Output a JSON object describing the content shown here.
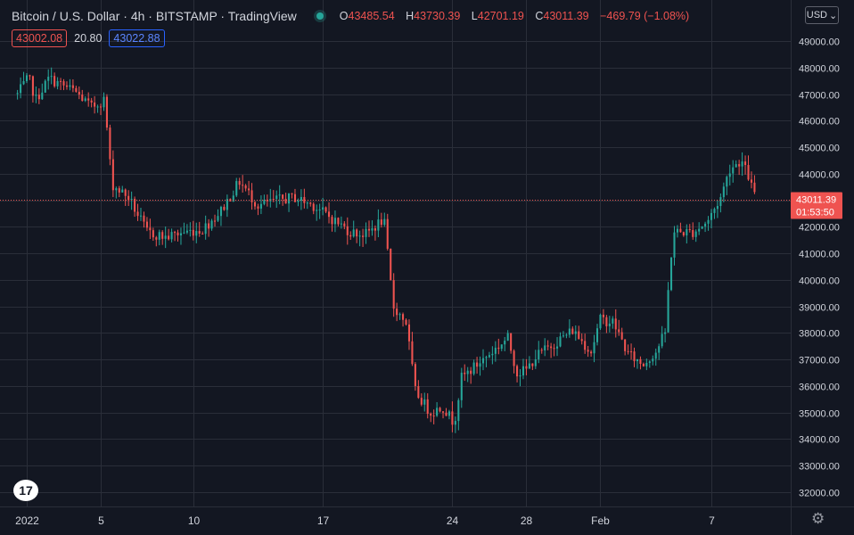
{
  "header": {
    "symbol_title": "Bitcoin / U.S. Dollar · 4h · BITSTAMP · TradingView",
    "ohlc": {
      "o_label": "O",
      "o_value": "43485.54",
      "h_label": "H",
      "h_value": "43730.39",
      "l_label": "L",
      "l_value": "42701.19",
      "c_label": "C",
      "c_value": "43011.39",
      "change": "−469.79 (−1.08%)"
    },
    "bid": "43002.08",
    "spread": "20.80",
    "ask": "43022.88",
    "currency": "USD"
  },
  "price_tag": {
    "price": "43011.39",
    "countdown": "01:53:50"
  },
  "colors": {
    "background": "#131722",
    "grid": "#2a2e39",
    "up": "#26a69a",
    "down": "#ef5350",
    "text": "#d1d4dc"
  },
  "icons": {
    "logo": "tradingview-logo-icon",
    "settings": "gear-icon",
    "currency_dropdown": "chevron-down-icon"
  },
  "chart_data": {
    "type": "candlestick",
    "interval": "4h",
    "last_price": 43011.39,
    "ylim": [
      31700,
      49700
    ],
    "y_ticks": [
      32000,
      33000,
      34000,
      35000,
      36000,
      37000,
      38000,
      39000,
      40000,
      41000,
      42000,
      43000,
      44000,
      45000,
      46000,
      47000,
      48000,
      49000
    ],
    "y_tick_labels": [
      "32000.00",
      "33000.00",
      "34000.00",
      "35000.00",
      "36000.00",
      "37000.00",
      "38000.00",
      "39000.00",
      "40000.00",
      "41000.00",
      "42000.00",
      "43000.00",
      "44000.00",
      "45000.00",
      "46000.00",
      "47000.00",
      "48000.00",
      "49000.00"
    ],
    "x_ticks": [
      {
        "label": "2022",
        "day": 1
      },
      {
        "label": "5",
        "day": 5
      },
      {
        "label": "10",
        "day": 10
      },
      {
        "label": "17",
        "day": 17
      },
      {
        "label": "24",
        "day": 24
      },
      {
        "label": "28",
        "day": 28
      },
      {
        "label": "Feb",
        "day": 32
      },
      {
        "label": "7",
        "day": 38
      }
    ],
    "first_day": 0.5,
    "candles_per_day": 6,
    "trend": [
      {
        "day": 0.5,
        "price": 47000
      },
      {
        "day": 1.1,
        "price": 47600
      },
      {
        "day": 1.5,
        "price": 46800
      },
      {
        "day": 2.2,
        "price": 47600
      },
      {
        "day": 3.0,
        "price": 47300
      },
      {
        "day": 3.6,
        "price": 47100
      },
      {
        "day": 4.5,
        "price": 46500
      },
      {
        "day": 5.2,
        "price": 46800
      },
      {
        "day": 5.6,
        "price": 43600
      },
      {
        "day": 6.5,
        "price": 43100
      },
      {
        "day": 7.5,
        "price": 41800
      },
      {
        "day": 8.5,
        "price": 41600
      },
      {
        "day": 9.5,
        "price": 41800
      },
      {
        "day": 10.5,
        "price": 41900
      },
      {
        "day": 11.5,
        "price": 42600
      },
      {
        "day": 12.5,
        "price": 43700
      },
      {
        "day": 13.5,
        "price": 42800
      },
      {
        "day": 14.5,
        "price": 43000
      },
      {
        "day": 15.5,
        "price": 43100
      },
      {
        "day": 16.5,
        "price": 42800
      },
      {
        "day": 17.5,
        "price": 42300
      },
      {
        "day": 18.5,
        "price": 41800
      },
      {
        "day": 19.3,
        "price": 41700
      },
      {
        "day": 20.3,
        "price": 42300
      },
      {
        "day": 20.8,
        "price": 39000
      },
      {
        "day": 21.5,
        "price": 38400
      },
      {
        "day": 22.0,
        "price": 35800
      },
      {
        "day": 22.8,
        "price": 35000
      },
      {
        "day": 23.5,
        "price": 35200
      },
      {
        "day": 24.1,
        "price": 34600
      },
      {
        "day": 24.5,
        "price": 36300
      },
      {
        "day": 25.5,
        "price": 36900
      },
      {
        "day": 26.5,
        "price": 37500
      },
      {
        "day": 27.0,
        "price": 37800
      },
      {
        "day": 27.5,
        "price": 36500
      },
      {
        "day": 28.0,
        "price": 36600
      },
      {
        "day": 28.5,
        "price": 37100
      },
      {
        "day": 29.5,
        "price": 37600
      },
      {
        "day": 30.5,
        "price": 38100
      },
      {
        "day": 31.5,
        "price": 37300
      },
      {
        "day": 32.0,
        "price": 38500
      },
      {
        "day": 32.7,
        "price": 38400
      },
      {
        "day": 33.5,
        "price": 37200
      },
      {
        "day": 34.3,
        "price": 36800
      },
      {
        "day": 35.0,
        "price": 37300
      },
      {
        "day": 35.5,
        "price": 38000
      },
      {
        "day": 35.8,
        "price": 40800
      },
      {
        "day": 36.0,
        "price": 41800
      },
      {
        "day": 37.0,
        "price": 41800
      },
      {
        "day": 37.8,
        "price": 42200
      },
      {
        "day": 38.5,
        "price": 43100
      },
      {
        "day": 39.0,
        "price": 44200
      },
      {
        "day": 39.6,
        "price": 44500
      },
      {
        "day": 40.0,
        "price": 43900
      },
      {
        "day": 40.4,
        "price": 43011
      }
    ]
  }
}
